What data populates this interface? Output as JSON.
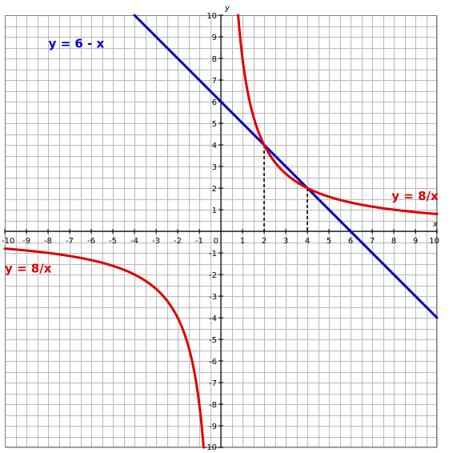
{
  "chart_data": {
    "type": "line",
    "title": "",
    "xlabel": "x",
    "ylabel": "y",
    "xlim": [
      -10,
      10
    ],
    "ylim": [
      -10,
      10
    ],
    "grid": true,
    "grid_step": 0.5,
    "x_ticks": [
      "-10",
      "-9",
      "-8",
      "-7",
      "-6",
      "-5",
      "-4",
      "-3",
      "-2",
      "-1",
      "0",
      "1",
      "2",
      "3",
      "4",
      "5",
      "6",
      "7",
      "8",
      "9",
      "10"
    ],
    "y_ticks": [
      "10",
      "9",
      "8",
      "7",
      "6",
      "5",
      "4",
      "3",
      "2",
      "1",
      "-1",
      "-2",
      "-3",
      "-4",
      "-5",
      "-6",
      "-7",
      "-8",
      "-9",
      "-10"
    ],
    "series": [
      {
        "name": "y = 6 - x",
        "kind": "linear",
        "color": "#0000cc",
        "points": [
          [
            -4,
            10
          ],
          [
            10,
            -4
          ]
        ]
      },
      {
        "name": "y = 8/x",
        "kind": "reciprocal",
        "k": 8,
        "color": "#dd0000",
        "branches": [
          [
            0.8,
            10
          ],
          [
            -10,
            -0.8
          ]
        ]
      }
    ],
    "intersections": [
      {
        "x": 2,
        "y": 4
      },
      {
        "x": 4,
        "y": 2
      }
    ],
    "annotations": [
      {
        "text": "y = 6 - x",
        "color": "#0000cc",
        "anchor": [
          -5.4,
          8.5
        ],
        "align": "end"
      },
      {
        "text": "y = 8/x",
        "color": "#dd0000",
        "anchor": [
          7.9,
          1.45
        ],
        "align": "start"
      },
      {
        "text": "y = 8/x",
        "color": "#dd0000",
        "anchor": [
          -10.0,
          -1.9
        ],
        "align": "start"
      }
    ]
  }
}
